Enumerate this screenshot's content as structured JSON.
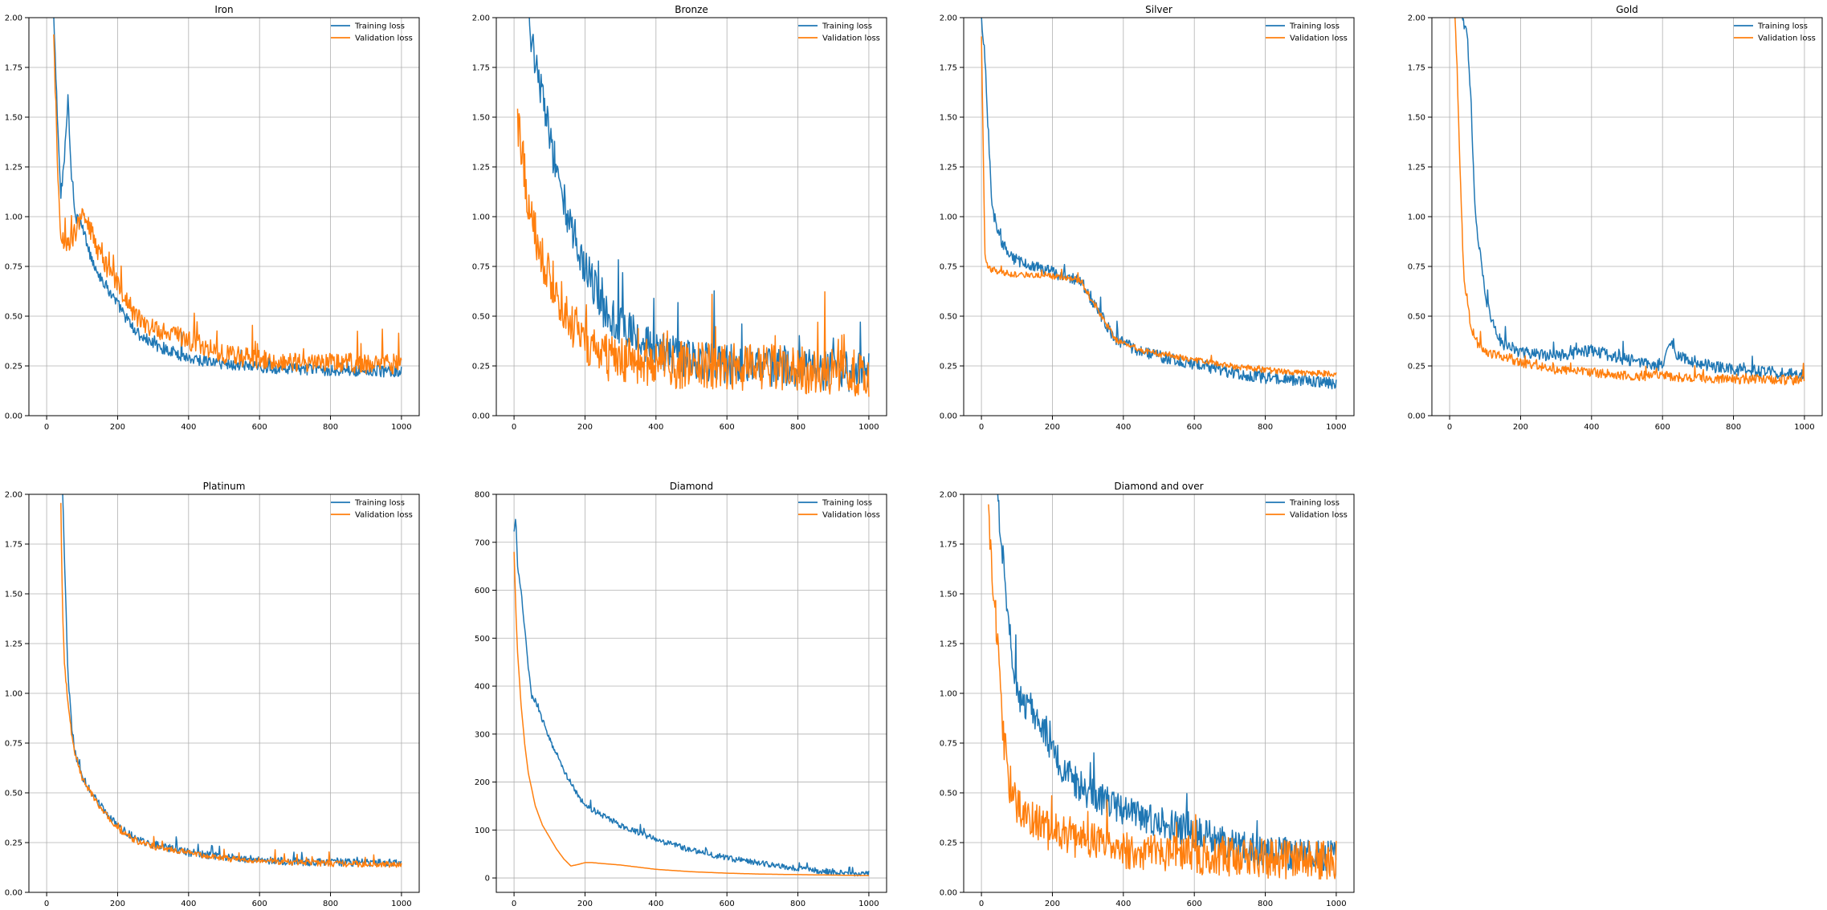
{
  "figure": {
    "legend_labels": [
      "Training loss",
      "Validation loss"
    ],
    "colors": {
      "training": "#1f77b4",
      "validation": "#ff7f0e",
      "grid": "#b0b0b0"
    }
  },
  "chart_data": [
    {
      "type": "line",
      "title": "Iron",
      "xlabel": "",
      "ylabel": "",
      "xlim": [
        -50,
        1050
      ],
      "ylim": [
        0,
        2.0
      ],
      "xticks": [
        "0",
        "200",
        "400",
        "600",
        "800",
        "1000"
      ],
      "yticks": [
        "0.00",
        "0.25",
        "0.50",
        "0.75",
        "1.00",
        "1.25",
        "1.50",
        "1.75",
        "2.00"
      ],
      "grid": true,
      "legend_position": "top-right",
      "series": [
        {
          "name": "Training loss",
          "color": "#1f77b4",
          "noise": 0.03,
          "start": 20,
          "x": [
            20,
            30,
            40,
            50,
            60,
            70,
            80,
            100,
            120,
            150,
            200,
            250,
            300,
            400,
            500,
            600,
            700,
            800,
            900,
            1000
          ],
          "y": [
            2.0,
            1.5,
            1.1,
            1.3,
            1.6,
            1.2,
            1.0,
            0.95,
            0.82,
            0.7,
            0.56,
            0.42,
            0.36,
            0.29,
            0.26,
            0.245,
            0.235,
            0.23,
            0.225,
            0.22
          ]
        },
        {
          "name": "Validation loss",
          "color": "#ff7f0e",
          "noise": 0.05,
          "start": 20,
          "x": [
            20,
            30,
            40,
            60,
            80,
            100,
            120,
            150,
            200,
            250,
            300,
            400,
            500,
            600,
            700,
            800,
            900,
            1000
          ],
          "y": [
            1.9,
            1.3,
            0.9,
            0.85,
            0.92,
            1.0,
            0.95,
            0.8,
            0.66,
            0.5,
            0.44,
            0.38,
            0.31,
            0.28,
            0.27,
            0.27,
            0.26,
            0.26
          ]
        }
      ]
    },
    {
      "type": "line",
      "title": "Bronze",
      "xlabel": "",
      "ylabel": "",
      "xlim": [
        -50,
        1050
      ],
      "ylim": [
        0,
        2.0
      ],
      "xticks": [
        "0",
        "200",
        "400",
        "600",
        "800",
        "1000"
      ],
      "yticks": [
        "0.00",
        "0.25",
        "0.50",
        "0.75",
        "1.00",
        "1.25",
        "1.50",
        "1.75",
        "2.00"
      ],
      "grid": true,
      "legend_position": "top-right",
      "series": [
        {
          "name": "Training loss",
          "color": "#1f77b4",
          "noise": 0.1,
          "start": 40,
          "x": [
            40,
            60,
            80,
            100,
            150,
            200,
            250,
            300,
            400,
            500,
            600,
            700,
            800,
            900,
            1000
          ],
          "y": [
            2.0,
            1.8,
            1.6,
            1.4,
            1.0,
            0.75,
            0.55,
            0.45,
            0.33,
            0.28,
            0.26,
            0.245,
            0.235,
            0.225,
            0.215
          ]
        },
        {
          "name": "Validation loss",
          "color": "#ff7f0e",
          "noise": 0.12,
          "start": 10,
          "x": [
            10,
            30,
            50,
            70,
            100,
            150,
            200,
            250,
            300,
            400,
            500,
            600,
            700,
            800,
            900,
            1000
          ],
          "y": [
            1.5,
            1.2,
            1.0,
            0.8,
            0.7,
            0.5,
            0.38,
            0.3,
            0.28,
            0.26,
            0.25,
            0.245,
            0.24,
            0.23,
            0.22,
            0.21
          ]
        }
      ]
    },
    {
      "type": "line",
      "title": "Silver",
      "xlabel": "",
      "ylabel": "",
      "xlim": [
        -50,
        1050
      ],
      "ylim": [
        0,
        2.0
      ],
      "xticks": [
        "0",
        "200",
        "400",
        "600",
        "800",
        "1000"
      ],
      "yticks": [
        "0.00",
        "0.25",
        "0.50",
        "0.75",
        "1.00",
        "1.25",
        "1.50",
        "1.75",
        "2.00"
      ],
      "grid": true,
      "legend_position": "top-right",
      "series": [
        {
          "name": "Training loss",
          "color": "#1f77b4",
          "noise": 0.03,
          "start": 0,
          "x": [
            0,
            10,
            20,
            30,
            50,
            80,
            120,
            200,
            280,
            320,
            380,
            450,
            500,
            600,
            700,
            800,
            900,
            1000
          ],
          "y": [
            2.0,
            1.8,
            1.4,
            1.05,
            0.9,
            0.8,
            0.76,
            0.72,
            0.68,
            0.55,
            0.38,
            0.32,
            0.3,
            0.26,
            0.22,
            0.19,
            0.175,
            0.16
          ]
        },
        {
          "name": "Validation loss",
          "color": "#ff7f0e",
          "noise": 0.015,
          "start": 0,
          "x": [
            0,
            10,
            20,
            50,
            100,
            200,
            280,
            320,
            380,
            450,
            500,
            600,
            700,
            800,
            900,
            1000
          ],
          "y": [
            1.9,
            0.8,
            0.74,
            0.72,
            0.71,
            0.7,
            0.68,
            0.55,
            0.38,
            0.33,
            0.31,
            0.28,
            0.25,
            0.23,
            0.215,
            0.21
          ]
        }
      ]
    },
    {
      "type": "line",
      "title": "Gold",
      "xlabel": "",
      "ylabel": "",
      "xlim": [
        -50,
        1050
      ],
      "ylim": [
        0,
        2.0
      ],
      "xticks": [
        "0",
        "200",
        "400",
        "600",
        "800",
        "1000"
      ],
      "yticks": [
        "0.00",
        "0.25",
        "0.50",
        "0.75",
        "1.00",
        "1.25",
        "1.50",
        "1.75",
        "2.00"
      ],
      "grid": true,
      "legend_position": "top-right",
      "series": [
        {
          "name": "Training loss",
          "color": "#1f77b4",
          "noise": 0.03,
          "start": 35,
          "x": [
            35,
            50,
            60,
            70,
            80,
            100,
            130,
            150,
            200,
            300,
            400,
            500,
            600,
            620,
            640,
            700,
            800,
            900,
            1000
          ],
          "y": [
            2.0,
            1.9,
            1.6,
            1.1,
            0.9,
            0.6,
            0.42,
            0.36,
            0.32,
            0.3,
            0.33,
            0.28,
            0.25,
            0.38,
            0.3,
            0.26,
            0.23,
            0.22,
            0.21
          ]
        },
        {
          "name": "Validation loss",
          "color": "#ff7f0e",
          "noise": 0.025,
          "start": 15,
          "x": [
            15,
            20,
            30,
            40,
            60,
            80,
            100,
            150,
            200,
            300,
            400,
            500,
            600,
            700,
            800,
            900,
            1000
          ],
          "y": [
            2.0,
            1.8,
            1.2,
            0.7,
            0.45,
            0.36,
            0.32,
            0.3,
            0.27,
            0.23,
            0.22,
            0.2,
            0.2,
            0.19,
            0.185,
            0.18,
            0.18
          ]
        }
      ]
    },
    {
      "type": "line",
      "title": "Platinum",
      "xlabel": "",
      "ylabel": "",
      "xlim": [
        -50,
        1050
      ],
      "ylim": [
        0,
        2.0
      ],
      "xticks": [
        "0",
        "200",
        "400",
        "600",
        "800",
        "1000"
      ],
      "yticks": [
        "0.00",
        "0.25",
        "0.50",
        "0.75",
        "1.00",
        "1.25",
        "1.50",
        "1.75",
        "2.00"
      ],
      "grid": true,
      "legend_position": "top-right",
      "series": [
        {
          "name": "Training loss",
          "color": "#1f77b4",
          "noise": 0.02,
          "start": 45,
          "x": [
            45,
            50,
            60,
            70,
            80,
            100,
            150,
            200,
            250,
            300,
            400,
            500,
            600,
            700,
            800,
            900,
            1000
          ],
          "y": [
            2.0,
            1.7,
            1.1,
            0.85,
            0.7,
            0.58,
            0.44,
            0.33,
            0.27,
            0.24,
            0.2,
            0.18,
            0.16,
            0.155,
            0.15,
            0.15,
            0.15
          ]
        },
        {
          "name": "Validation loss",
          "color": "#ff7f0e",
          "noise": 0.015,
          "start": 40,
          "x": [
            40,
            45,
            50,
            60,
            70,
            80,
            100,
            150,
            200,
            250,
            300,
            400,
            500,
            600,
            700,
            800,
            900,
            1000
          ],
          "y": [
            1.95,
            1.4,
            1.15,
            0.95,
            0.8,
            0.7,
            0.57,
            0.43,
            0.32,
            0.26,
            0.23,
            0.2,
            0.17,
            0.16,
            0.15,
            0.145,
            0.14,
            0.14
          ]
        }
      ]
    },
    {
      "type": "line",
      "title": "Diamond",
      "xlabel": "",
      "ylabel": "",
      "xlim": [
        -50,
        1050
      ],
      "ylim": [
        -30,
        800
      ],
      "yticks_values": [
        0,
        100,
        200,
        300,
        400,
        500,
        600,
        700,
        800
      ],
      "xticks": [
        "0",
        "200",
        "400",
        "600",
        "800",
        "1000"
      ],
      "yticks": [
        "0",
        "100",
        "200",
        "300",
        "400",
        "500",
        "600",
        "700",
        "800"
      ],
      "grid": true,
      "legend_position": "top-right",
      "series": [
        {
          "name": "Training loss",
          "color": "#1f77b4",
          "noise": 6,
          "start": 0,
          "x": [
            0,
            5,
            10,
            20,
            40,
            50,
            60,
            80,
            100,
            150,
            200,
            300,
            400,
            500,
            600,
            700,
            800,
            900,
            1000
          ],
          "y": [
            720,
            760,
            650,
            600,
            440,
            380,
            370,
            330,
            290,
            210,
            150,
            110,
            80,
            58,
            42,
            30,
            20,
            12,
            8
          ]
        },
        {
          "name": "Validation loss",
          "color": "#ff7f0e",
          "noise": 0,
          "start": 0,
          "x": [
            0,
            5,
            10,
            20,
            30,
            40,
            60,
            80,
            100,
            120,
            140,
            160,
            180,
            200,
            220,
            250,
            300,
            400,
            500,
            600,
            700,
            800,
            900,
            1000
          ],
          "y": [
            680,
            560,
            470,
            360,
            280,
            220,
            150,
            110,
            85,
            60,
            40,
            25,
            28,
            32,
            32,
            30,
            27,
            18,
            13,
            10,
            8,
            7,
            6,
            5
          ]
        }
      ]
    },
    {
      "type": "line",
      "title": "Diamond and over",
      "xlabel": "",
      "ylabel": "",
      "xlim": [
        -50,
        1050
      ],
      "ylim": [
        0,
        2.0
      ],
      "xticks": [
        "0",
        "200",
        "400",
        "600",
        "800",
        "1000"
      ],
      "yticks": [
        "0.00",
        "0.25",
        "0.50",
        "0.75",
        "1.00",
        "1.25",
        "1.50",
        "1.75",
        "2.00"
      ],
      "grid": true,
      "legend_position": "top-right",
      "series": [
        {
          "name": "Training loss",
          "color": "#1f77b4",
          "noise": 0.08,
          "start": 45,
          "x": [
            45,
            60,
            80,
            100,
            150,
            200,
            250,
            300,
            400,
            500,
            600,
            700,
            800,
            900,
            1000
          ],
          "y": [
            2.0,
            1.7,
            1.3,
            1.0,
            0.9,
            0.7,
            0.58,
            0.5,
            0.42,
            0.35,
            0.3,
            0.25,
            0.2,
            0.19,
            0.18
          ]
        },
        {
          "name": "Validation loss",
          "color": "#ff7f0e",
          "noise": 0.1,
          "start": 20,
          "x": [
            20,
            40,
            60,
            80,
            100,
            150,
            200,
            250,
            300,
            400,
            500,
            600,
            700,
            800,
            900,
            1000
          ],
          "y": [
            1.9,
            1.4,
            0.8,
            0.55,
            0.45,
            0.35,
            0.3,
            0.28,
            0.25,
            0.22,
            0.2,
            0.19,
            0.18,
            0.17,
            0.16,
            0.16
          ]
        }
      ]
    }
  ]
}
